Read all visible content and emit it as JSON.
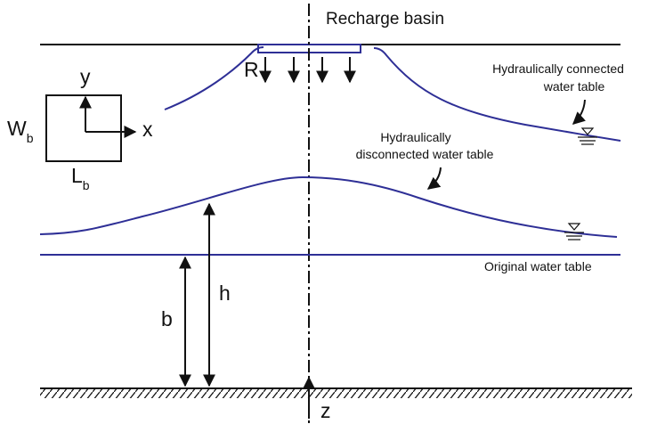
{
  "labels": {
    "recharge_basin": "Recharge basin",
    "recharge_rate": "R",
    "axis_y": "y",
    "axis_x": "x",
    "width": {
      "main": "W",
      "sub": "b"
    },
    "length": {
      "main": "L",
      "sub": "b"
    },
    "connected": [
      "Hydraulically connected",
      "water table"
    ],
    "disconnected": [
      "Hydraulically",
      "disconnected water table"
    ],
    "original": "Original water table",
    "head": "h",
    "base": "b",
    "depth": "z"
  }
}
